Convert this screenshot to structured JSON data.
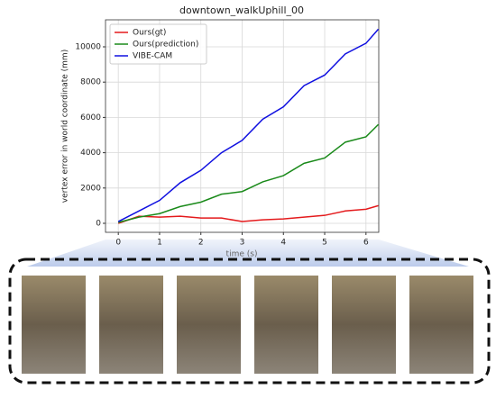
{
  "chart_data": {
    "type": "line",
    "title": "downtown_walkUphill_00",
    "x_label": "time (s)",
    "y_label": "vertex error in world coordinate (mm)",
    "x": [
      0,
      0.5,
      1,
      1.5,
      2,
      2.5,
      3,
      3.5,
      4,
      4.5,
      5,
      5.5,
      6,
      6.3
    ],
    "series": [
      {
        "name": "Ours(gt)",
        "color": "#e41a1c",
        "values": [
          0,
          400,
          350,
          400,
          300,
          300,
          100,
          200,
          250,
          350,
          450,
          700,
          800,
          1000
        ]
      },
      {
        "name": "Ours(prediction)",
        "color": "#1a8a1a",
        "values": [
          50,
          350,
          550,
          950,
          1200,
          1650,
          1800,
          2350,
          2700,
          3400,
          3700,
          4600,
          4900,
          5600
        ]
      },
      {
        "name": "VIBE-CAM",
        "color": "#1010e0",
        "values": [
          100,
          700,
          1300,
          2300,
          3000,
          4000,
          4700,
          5900,
          6600,
          7800,
          8400,
          9600,
          10200,
          11000
        ]
      }
    ],
    "xlim": [
      -0.31,
      6.31
    ],
    "ylim": [
      -510,
      11530
    ],
    "xticks": [
      0,
      1,
      2,
      3,
      4,
      5,
      6
    ],
    "yticks": [
      0,
      2000,
      4000,
      6000,
      8000,
      10000
    ],
    "grid": true,
    "legend": "upper-left"
  }
}
